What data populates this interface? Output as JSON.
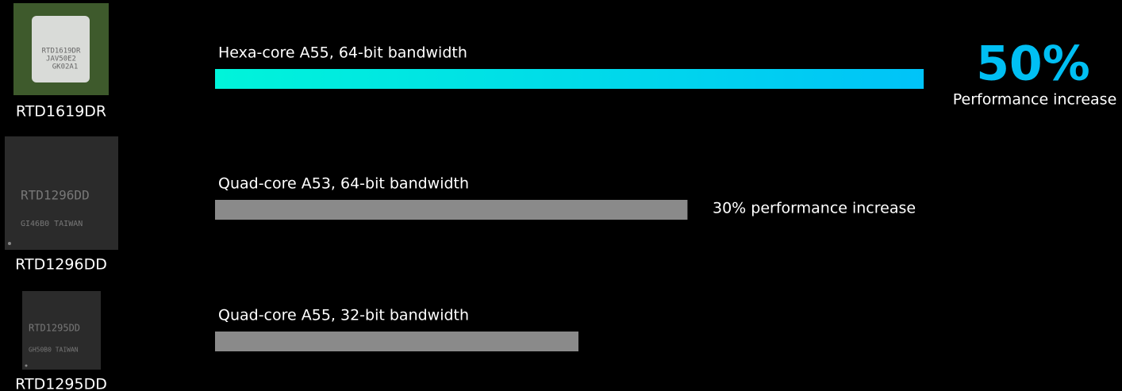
{
  "chart_data": {
    "type": "bar",
    "orientation": "horizontal",
    "categories": [
      "Hexa-core A55, 64-bit bandwidth",
      "Quad-core A53, 64-bit bandwidth",
      "Quad-core A55, 32-bit bandwidth"
    ],
    "values": [
      195,
      130,
      100
    ],
    "colors": [
      [
        "#00f4da",
        "#00c3f8"
      ],
      "#8a8a8a",
      "#8a8a8a"
    ],
    "xlim": [
      0,
      200
    ],
    "annotations": [
      "50%",
      "Performance increase",
      "30% performance increase"
    ],
    "chips": [
      {
        "name": "RTD1619DR",
        "markings": [
          "RTD1619DR",
          "JAV50E2",
          "GK02A1"
        ]
      },
      {
        "name": "RTD1296DD",
        "markings": [
          "RTD1296DD",
          "GI46B0 TAIWAN"
        ]
      },
      {
        "name": "RTD1295DD",
        "markings": [
          "RTD1295DD",
          "GH50B0 TAIWAN"
        ]
      }
    ]
  }
}
